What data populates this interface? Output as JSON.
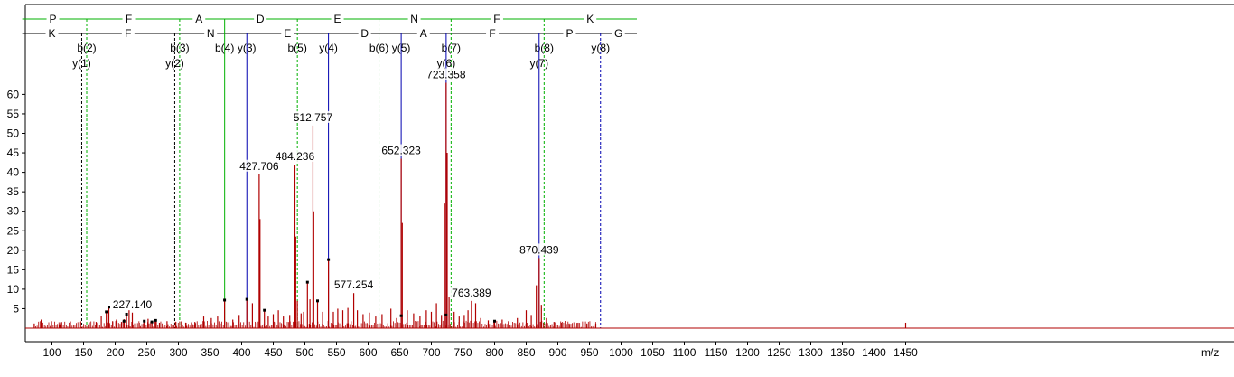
{
  "chart_data": {
    "type": "spectrum",
    "x_unit_label": "m/z",
    "xlim": [
      70,
      1465
    ],
    "ylim": [
      0,
      65
    ],
    "x_ticks": [
      100,
      150,
      200,
      250,
      300,
      350,
      400,
      450,
      500,
      550,
      600,
      650,
      700,
      750,
      800,
      850,
      900,
      950,
      1000,
      1050,
      1100,
      1150,
      1200,
      1250,
      1300,
      1350,
      1400,
      1450
    ],
    "y_ticks": [
      5,
      10,
      15,
      20,
      25,
      30,
      35,
      40,
      45,
      50,
      55,
      60
    ],
    "colors": {
      "b_ion": "#00b000",
      "y_ion": "#0000b0",
      "peak": "#b00000",
      "grid_line": "#000000"
    },
    "b_sequence": [
      "P",
      "F",
      "A",
      "D",
      "E",
      "N",
      "F",
      "K"
    ],
    "y_sequence": [
      "K",
      "F",
      "N",
      "E",
      "D",
      "A",
      "F",
      "P",
      "G"
    ],
    "b_sequence_mz": [
      53,
      150,
      293,
      372,
      487,
      616,
      730,
      877,
      1025
    ],
    "y_sequence_mz": [
      53,
      147,
      294,
      408,
      537,
      652,
      723,
      870,
      967,
      1025
    ],
    "b_ions": [
      {
        "label": "b(2)",
        "mz": 155.0
      },
      {
        "label": "b(3)",
        "mz": 302.0
      },
      {
        "label": "b(4)",
        "mz": 373.1,
        "matched": true
      },
      {
        "label": "b(5)",
        "mz": 488.1
      },
      {
        "label": "b(6)",
        "mz": 617.2
      },
      {
        "label": "b(7)",
        "mz": 731.2
      },
      {
        "label": "b(8)",
        "mz": 878.3
      }
    ],
    "y_ions": [
      {
        "label": "y(1)",
        "mz": 147.1
      },
      {
        "label": "y(2)",
        "mz": 294.2
      },
      {
        "label": "y(3)",
        "mz": 408.2,
        "matched": true
      },
      {
        "label": "y(4)",
        "mz": 537.3,
        "matched": true
      },
      {
        "label": "y(5)",
        "mz": 652.3,
        "matched": true
      },
      {
        "label": "y(6)",
        "mz": 723.4,
        "matched": true
      },
      {
        "label": "y(7)",
        "mz": 870.4,
        "matched": true
      },
      {
        "label": "y(8)",
        "mz": 967.5
      }
    ],
    "labeled_peaks": [
      {
        "mz": 227.14,
        "intensity": 4.0,
        "label": "227.140"
      },
      {
        "mz": 427.706,
        "intensity": 39.5,
        "label": "427.706"
      },
      {
        "mz": 484.236,
        "intensity": 42.0,
        "label": "484.236"
      },
      {
        "mz": 512.757,
        "intensity": 52.0,
        "label": "512.757"
      },
      {
        "mz": 577.254,
        "intensity": 9.0,
        "label": "577.254"
      },
      {
        "mz": 652.323,
        "intensity": 43.5,
        "label": "652.323"
      },
      {
        "mz": 723.358,
        "intensity": 63.0,
        "label": "723.358"
      },
      {
        "mz": 763.389,
        "intensity": 7.0,
        "label": "763.389"
      },
      {
        "mz": 870.439,
        "intensity": 18.0,
        "label": "870.439"
      }
    ],
    "peaks": [
      [
        72,
        1.2
      ],
      [
        83,
        2.2
      ],
      [
        112,
        1.0
      ],
      [
        170,
        1.6
      ],
      [
        178,
        3.2
      ],
      [
        186,
        4.2
      ],
      [
        190,
        5.4
      ],
      [
        196,
        1.8
      ],
      [
        202,
        2.2
      ],
      [
        210,
        1.6
      ],
      [
        214,
        2.3
      ],
      [
        218,
        3.6
      ],
      [
        222,
        4.6
      ],
      [
        227.14,
        4.0
      ],
      [
        238,
        1.4
      ],
      [
        246,
        2.0
      ],
      [
        252,
        2.4
      ],
      [
        258,
        1.6
      ],
      [
        264,
        2.0
      ],
      [
        270,
        1.4
      ],
      [
        282,
        1.8
      ],
      [
        296,
        1.6
      ],
      [
        312,
        1.4
      ],
      [
        326,
        1.6
      ],
      [
        340,
        3.0
      ],
      [
        352,
        2.6
      ],
      [
        362,
        3.0
      ],
      [
        373,
        7.2
      ],
      [
        386,
        2.2
      ],
      [
        396,
        3.4
      ],
      [
        408.2,
        7.4
      ],
      [
        417,
        6.4
      ],
      [
        427.7,
        39.5
      ],
      [
        429,
        28.0
      ],
      [
        436,
        4.6
      ],
      [
        442,
        3.0
      ],
      [
        450,
        3.6
      ],
      [
        458,
        4.6
      ],
      [
        466,
        3.0
      ],
      [
        476,
        3.4
      ],
      [
        484.24,
        42.0
      ],
      [
        485.5,
        23.5
      ],
      [
        488,
        7.0
      ],
      [
        494,
        3.8
      ],
      [
        498,
        4.2
      ],
      [
        504,
        11.8
      ],
      [
        508,
        7.4
      ],
      [
        512.76,
        52.0
      ],
      [
        514,
        30.0
      ],
      [
        520,
        7.0
      ],
      [
        528,
        4.2
      ],
      [
        537.3,
        17.6
      ],
      [
        545,
        4.2
      ],
      [
        552,
        5.0
      ],
      [
        560,
        4.6
      ],
      [
        568,
        5.2
      ],
      [
        577.25,
        9.0
      ],
      [
        583,
        4.6
      ],
      [
        592,
        3.6
      ],
      [
        602,
        4.0
      ],
      [
        612,
        3.0
      ],
      [
        622,
        3.6
      ],
      [
        636,
        5.0
      ],
      [
        645,
        2.6
      ],
      [
        652.32,
        43.5
      ],
      [
        654,
        27.0
      ],
      [
        662,
        4.6
      ],
      [
        672,
        3.8
      ],
      [
        682,
        3.2
      ],
      [
        692,
        4.6
      ],
      [
        700,
        4.2
      ],
      [
        708,
        6.4
      ],
      [
        716,
        3.4
      ],
      [
        721,
        32.0
      ],
      [
        723.36,
        63.0
      ],
      [
        725,
        45.0
      ],
      [
        728,
        8.0
      ],
      [
        736,
        4.2
      ],
      [
        744,
        3.0
      ],
      [
        752,
        3.4
      ],
      [
        758,
        4.6
      ],
      [
        763.39,
        7.0
      ],
      [
        770,
        6.4
      ],
      [
        778,
        2.6
      ],
      [
        790,
        2.0
      ],
      [
        800,
        1.8
      ],
      [
        812,
        2.2
      ],
      [
        822,
        1.8
      ],
      [
        836,
        2.6
      ],
      [
        850,
        4.6
      ],
      [
        858,
        3.4
      ],
      [
        866,
        11.0
      ],
      [
        870.44,
        18.0
      ],
      [
        874,
        6.0
      ],
      [
        882,
        2.6
      ],
      [
        894,
        1.6
      ],
      [
        906,
        1.4
      ],
      [
        918,
        1.2
      ],
      [
        932,
        1.4
      ],
      [
        946,
        1.2
      ],
      [
        960,
        1.2
      ],
      [
        1450,
        1.4
      ]
    ],
    "marked_peaks": [
      [
        186,
        4.2
      ],
      [
        190,
        5.4
      ],
      [
        214,
        1.8
      ],
      [
        218,
        3.6
      ],
      [
        246,
        1.8
      ],
      [
        258,
        1.6
      ],
      [
        264,
        2.0
      ],
      [
        373,
        7.2
      ],
      [
        408.2,
        7.4
      ],
      [
        436,
        4.6
      ],
      [
        504,
        11.8
      ],
      [
        520,
        7.0
      ],
      [
        537.3,
        17.6
      ],
      [
        652.32,
        3.2
      ],
      [
        723.36,
        3.4
      ],
      [
        800,
        1.8
      ]
    ]
  }
}
